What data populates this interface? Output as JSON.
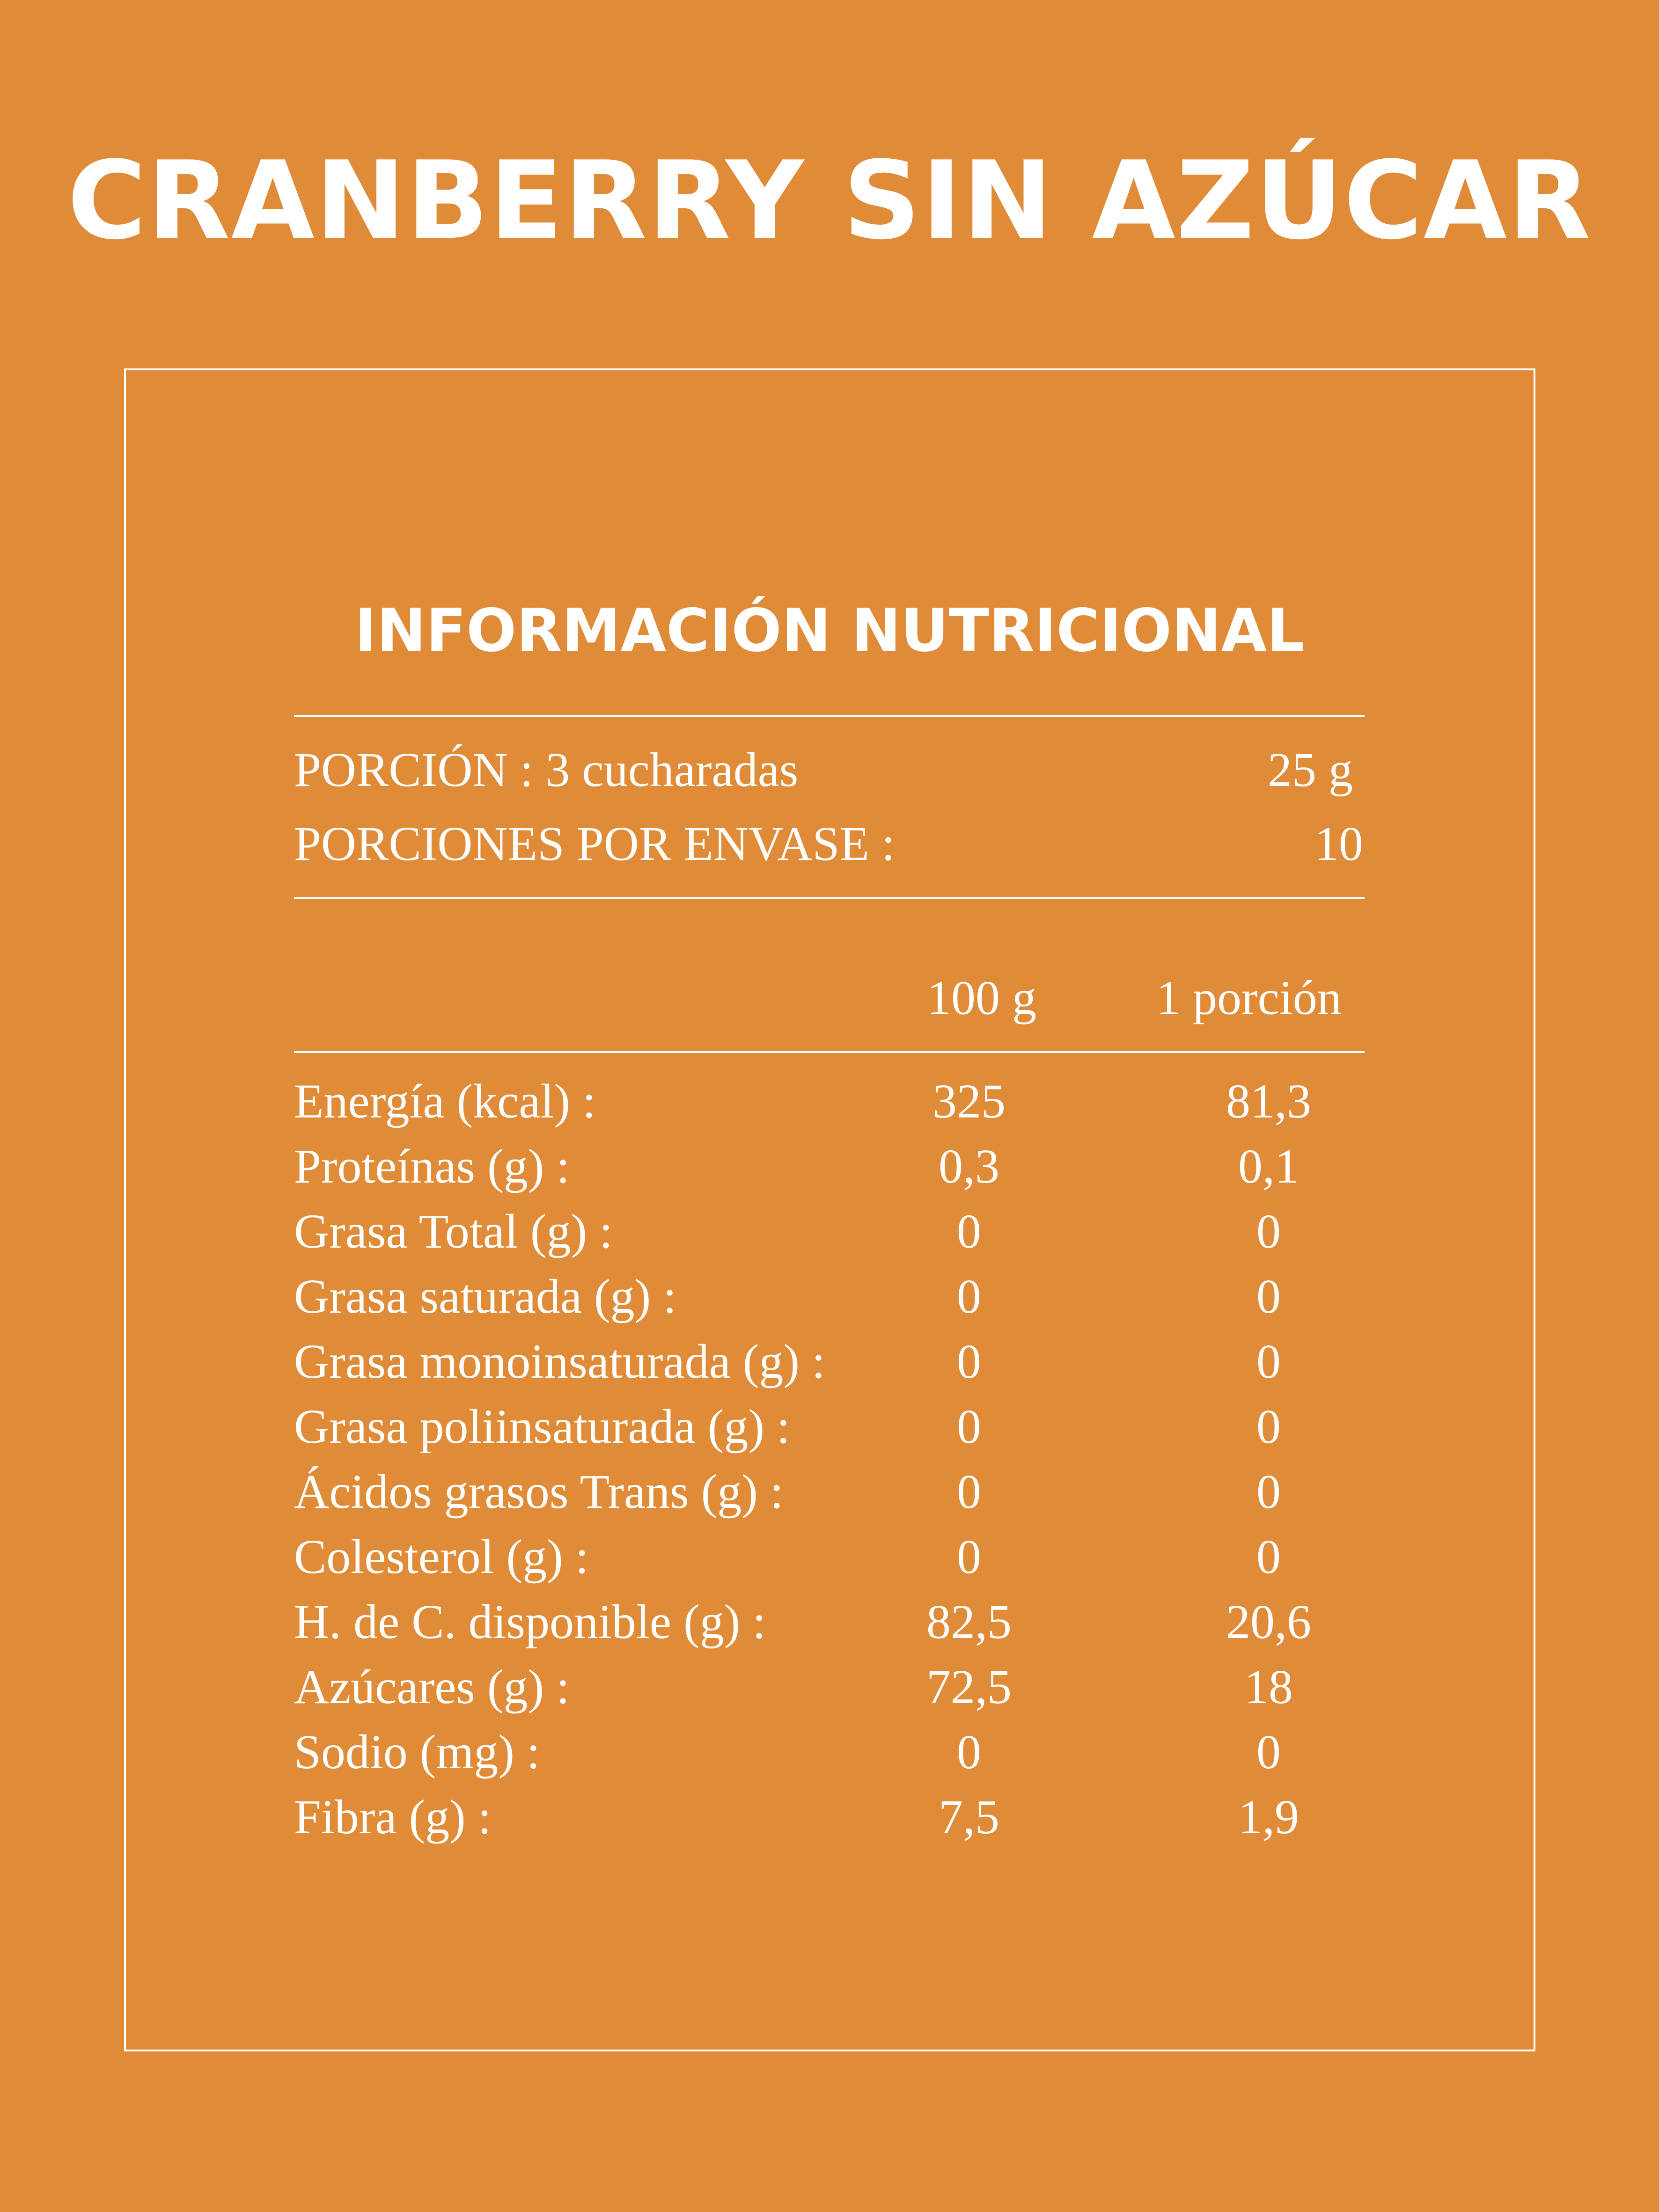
{
  "title": "CRANBERRY SIN AZÚCAR",
  "section_title": "INFORMACIÓN NUTRICIONAL",
  "serving": {
    "portion_label": "PORCIÓN : 3 cucharadas",
    "portion_value": "25 g",
    "servings_label": "PORCIONES POR ENVASE :",
    "servings_value": "10"
  },
  "columns": {
    "per100": "100  g",
    "per_portion": "1 porción"
  },
  "rows": [
    {
      "label": "Energía (kcal) :",
      "per100": "325",
      "portion": "81,3"
    },
    {
      "label": "Proteínas (g) :",
      "per100": "0,3",
      "portion": "0,1"
    },
    {
      "label": "Grasa Total (g) :",
      "per100": "0",
      "portion": "0"
    },
    {
      "label": "Grasa saturada (g) :",
      "per100": "0",
      "portion": "0"
    },
    {
      "label": "Grasa monoinsaturada (g) :",
      "per100": "0",
      "portion": "0"
    },
    {
      "label": "Grasa poliinsaturada (g) :",
      "per100": "0",
      "portion": "0"
    },
    {
      "label": "Ácidos grasos Trans (g) :",
      "per100": "0",
      "portion": "0"
    },
    {
      "label": "Colesterol (g) :",
      "per100": "0",
      "portion": "0"
    },
    {
      "label": "H. de C. disponible (g) :",
      "per100": "82,5",
      "portion": "20,6"
    },
    {
      "label": "Azúcares (g) :",
      "per100": "72,5",
      "portion": "18"
    },
    {
      "label": "Sodio (mg) :",
      "per100": "0",
      "portion": "0"
    },
    {
      "label": "Fibra (g) :",
      "per100": "7,5",
      "portion": "1,9"
    }
  ]
}
